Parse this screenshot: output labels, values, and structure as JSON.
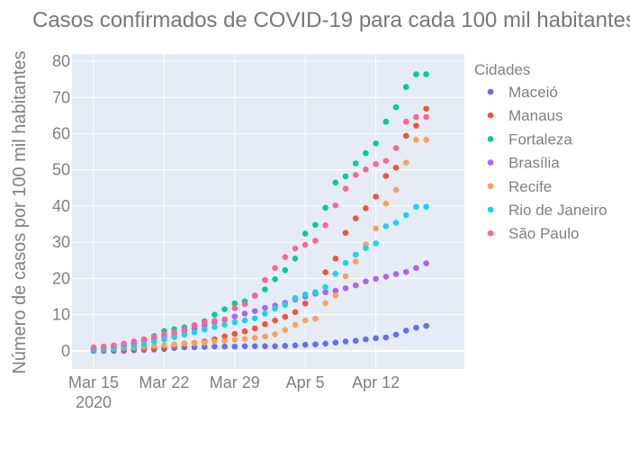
{
  "chart_data": {
    "type": "scatter",
    "title": "Casos confirmados de COVID-19 para cada 100 mil habitantes",
    "xlabel": "",
    "ylabel": "Número de casos por 100 mil habitantes",
    "x_start": "2020-03-15",
    "x_end": "2020-04-19",
    "ylim": [
      -5,
      82
    ],
    "yticks": [
      0,
      10,
      20,
      30,
      40,
      50,
      60,
      70,
      80
    ],
    "xticks": [
      {
        "date": "2020-03-15",
        "label": "Mar 15",
        "sublabel": "2020"
      },
      {
        "date": "2020-03-22",
        "label": "Mar 22",
        "sublabel": ""
      },
      {
        "date": "2020-03-29",
        "label": "Mar 29",
        "sublabel": ""
      },
      {
        "date": "2020-04-05",
        "label": "Apr 5",
        "sublabel": ""
      },
      {
        "date": "2020-04-12",
        "label": "Apr 12",
        "sublabel": ""
      }
    ],
    "grid": true,
    "legend_title": "Cidades",
    "legend_position": "right",
    "series": [
      {
        "name": "Maceió",
        "color": "#636efa",
        "x": [
          "2020-03-15",
          "2020-03-16",
          "2020-03-17",
          "2020-03-18",
          "2020-03-19",
          "2020-03-20",
          "2020-03-21",
          "2020-03-22",
          "2020-03-23",
          "2020-03-24",
          "2020-03-25",
          "2020-03-26",
          "2020-03-27",
          "2020-03-28",
          "2020-03-29",
          "2020-03-30",
          "2020-03-31",
          "2020-04-01",
          "2020-04-02",
          "2020-04-03",
          "2020-04-04",
          "2020-04-05",
          "2020-04-06",
          "2020-04-07",
          "2020-04-08",
          "2020-04-09",
          "2020-04-10",
          "2020-04-11",
          "2020-04-12",
          "2020-04-13",
          "2020-04-14",
          "2020-04-15",
          "2020-04-16",
          "2020-04-17"
        ],
        "y": [
          0,
          0,
          0,
          0,
          0.2,
          0.3,
          0.4,
          0.5,
          0.8,
          1.0,
          1.0,
          1.1,
          1.2,
          1.2,
          1.2,
          1.3,
          1.3,
          1.3,
          1.3,
          1.4,
          1.5,
          1.7,
          1.8,
          2.0,
          2.3,
          2.6,
          2.8,
          3.2,
          3.5,
          3.7,
          4.5,
          5.6,
          6.4,
          6.9
        ]
      },
      {
        "name": "Manaus",
        "color": "#ef553b",
        "x": [
          "2020-03-15",
          "2020-03-16",
          "2020-03-17",
          "2020-03-18",
          "2020-03-19",
          "2020-03-20",
          "2020-03-21",
          "2020-03-22",
          "2020-03-23",
          "2020-03-24",
          "2020-03-25",
          "2020-03-26",
          "2020-03-27",
          "2020-03-28",
          "2020-03-29",
          "2020-03-30",
          "2020-03-31",
          "2020-04-01",
          "2020-04-02",
          "2020-04-03",
          "2020-04-04",
          "2020-04-05",
          "2020-04-06",
          "2020-04-07",
          "2020-04-08",
          "2020-04-09",
          "2020-04-10",
          "2020-04-11",
          "2020-04-12",
          "2020-04-13",
          "2020-04-14",
          "2020-04-15",
          "2020-04-16",
          "2020-04-17"
        ],
        "y": [
          0.2,
          0.2,
          0.3,
          0.3,
          0.6,
          0.7,
          0.8,
          1.0,
          1.5,
          2.0,
          2.2,
          2.6,
          3.2,
          4.0,
          4.7,
          5.4,
          6.2,
          7.4,
          8.4,
          9.4,
          10.7,
          13.1,
          16.0,
          21.7,
          25.5,
          32.6,
          36.6,
          39.4,
          42.6,
          48.3,
          50.6,
          59.4,
          62.2,
          66.9
        ]
      },
      {
        "name": "Fortaleza",
        "color": "#00cc96",
        "x": [
          "2020-03-15",
          "2020-03-16",
          "2020-03-17",
          "2020-03-18",
          "2020-03-19",
          "2020-03-20",
          "2020-03-21",
          "2020-03-22",
          "2020-03-23",
          "2020-03-24",
          "2020-03-25",
          "2020-03-26",
          "2020-03-27",
          "2020-03-28",
          "2020-03-29",
          "2020-03-30",
          "2020-03-31",
          "2020-04-01",
          "2020-04-02",
          "2020-04-03",
          "2020-04-04",
          "2020-04-05",
          "2020-04-06",
          "2020-04-07",
          "2020-04-08",
          "2020-04-09",
          "2020-04-10",
          "2020-04-11",
          "2020-04-12",
          "2020-04-13",
          "2020-04-14",
          "2020-04-15",
          "2020-04-16",
          "2020-04-17"
        ],
        "y": [
          0.3,
          0.4,
          0.9,
          1.5,
          2.1,
          3.0,
          4.1,
          5.5,
          6.0,
          6.5,
          7.1,
          8.2,
          10.0,
          11.5,
          13.1,
          13.7,
          15.3,
          17.0,
          19.8,
          22.3,
          25.5,
          32.4,
          34.8,
          39.5,
          46.5,
          48.2,
          51.8,
          54.6,
          57.3,
          63.3,
          67.3,
          72.9,
          76.4,
          76.4
        ]
      },
      {
        "name": "Brasília",
        "color": "#ab63fa",
        "x": [
          "2020-03-15",
          "2020-03-16",
          "2020-03-17",
          "2020-03-18",
          "2020-03-19",
          "2020-03-20",
          "2020-03-21",
          "2020-03-22",
          "2020-03-23",
          "2020-03-24",
          "2020-03-25",
          "2020-03-26",
          "2020-03-27",
          "2020-03-28",
          "2020-03-29",
          "2020-03-30",
          "2020-03-31",
          "2020-04-01",
          "2020-04-02",
          "2020-04-03",
          "2020-04-04",
          "2020-04-05",
          "2020-04-06",
          "2020-04-07",
          "2020-04-08",
          "2020-04-09",
          "2020-04-10",
          "2020-04-11",
          "2020-04-12",
          "2020-04-13",
          "2020-04-14",
          "2020-04-15",
          "2020-04-16",
          "2020-04-17"
        ],
        "y": [
          0.7,
          0.8,
          1.2,
          1.5,
          2.0,
          2.9,
          3.4,
          4.0,
          4.6,
          5.5,
          6.2,
          7.0,
          7.9,
          8.6,
          9.5,
          10.3,
          11.0,
          11.9,
          12.5,
          13.3,
          14.2,
          15.0,
          15.8,
          16.2,
          16.6,
          17.3,
          18.1,
          19.2,
          19.9,
          20.5,
          21.2,
          21.8,
          22.9,
          24.2
        ]
      },
      {
        "name": "Recife",
        "color": "#ffa15a",
        "x": [
          "2020-03-15",
          "2020-03-16",
          "2020-03-17",
          "2020-03-18",
          "2020-03-19",
          "2020-03-20",
          "2020-03-21",
          "2020-03-22",
          "2020-03-23",
          "2020-03-24",
          "2020-03-25",
          "2020-03-26",
          "2020-03-27",
          "2020-03-28",
          "2020-03-29",
          "2020-03-30",
          "2020-03-31",
          "2020-04-01",
          "2020-04-02",
          "2020-04-03",
          "2020-04-04",
          "2020-04-05",
          "2020-04-06",
          "2020-04-07",
          "2020-04-08",
          "2020-04-09",
          "2020-04-10",
          "2020-04-11",
          "2020-04-12",
          "2020-04-13",
          "2020-04-14",
          "2020-04-15",
          "2020-04-16",
          "2020-04-17"
        ],
        "y": [
          0.4,
          0.5,
          0.6,
          0.8,
          1.0,
          1.2,
          1.4,
          1.6,
          1.8,
          2.0,
          2.1,
          2.3,
          2.6,
          2.8,
          3.1,
          3.3,
          3.6,
          4.0,
          4.6,
          5.8,
          7.2,
          8.4,
          8.9,
          13.2,
          15.3,
          20.6,
          24.7,
          29.4,
          33.8,
          40.7,
          44.5,
          52.0,
          58.3,
          58.3
        ]
      },
      {
        "name": "Rio de Janeiro",
        "color": "#19d3f3",
        "x": [
          "2020-03-15",
          "2020-03-16",
          "2020-03-17",
          "2020-03-18",
          "2020-03-19",
          "2020-03-20",
          "2020-03-21",
          "2020-03-22",
          "2020-03-23",
          "2020-03-24",
          "2020-03-25",
          "2020-03-26",
          "2020-03-27",
          "2020-03-28",
          "2020-03-29",
          "2020-03-30",
          "2020-03-31",
          "2020-04-01",
          "2020-04-02",
          "2020-04-03",
          "2020-04-04",
          "2020-04-05",
          "2020-04-06",
          "2020-04-07",
          "2020-04-08",
          "2020-04-09",
          "2020-04-10",
          "2020-04-11",
          "2020-04-12",
          "2020-04-13",
          "2020-04-14",
          "2020-04-15",
          "2020-04-16",
          "2020-04-17"
        ],
        "y": [
          0.3,
          0.4,
          0.7,
          1.0,
          1.3,
          1.8,
          2.6,
          3.2,
          3.8,
          4.5,
          5.1,
          5.9,
          6.6,
          7.2,
          7.9,
          8.4,
          9.0,
          10.3,
          11.7,
          12.7,
          14.6,
          15.6,
          16.2,
          17.6,
          21.3,
          24.3,
          26.6,
          28.4,
          29.7,
          34.4,
          35.4,
          37.5,
          39.8,
          39.8
        ]
      },
      {
        "name": "São Paulo",
        "color": "#ff6692",
        "x": [
          "2020-03-15",
          "2020-03-16",
          "2020-03-17",
          "2020-03-18",
          "2020-03-19",
          "2020-03-20",
          "2020-03-21",
          "2020-03-22",
          "2020-03-23",
          "2020-03-24",
          "2020-03-25",
          "2020-03-26",
          "2020-03-27",
          "2020-03-28",
          "2020-03-29",
          "2020-03-30",
          "2020-03-31",
          "2020-04-01",
          "2020-04-02",
          "2020-04-03",
          "2020-04-04",
          "2020-04-05",
          "2020-04-06",
          "2020-04-07",
          "2020-04-08",
          "2020-04-09",
          "2020-04-10",
          "2020-04-11",
          "2020-04-12",
          "2020-04-13",
          "2020-04-14",
          "2020-04-15",
          "2020-04-16",
          "2020-04-17"
        ],
        "y": [
          1.0,
          1.2,
          1.5,
          2.0,
          2.6,
          3.2,
          3.9,
          4.6,
          5.1,
          5.8,
          7.1,
          7.9,
          8.3,
          8.7,
          11.8,
          12.9,
          15.2,
          19.6,
          22.9,
          25.9,
          28.3,
          29.3,
          30.4,
          34.7,
          40.2,
          44.8,
          48.6,
          50.1,
          51.6,
          52.5,
          56.0,
          63.3,
          64.6,
          64.6
        ]
      }
    ]
  }
}
